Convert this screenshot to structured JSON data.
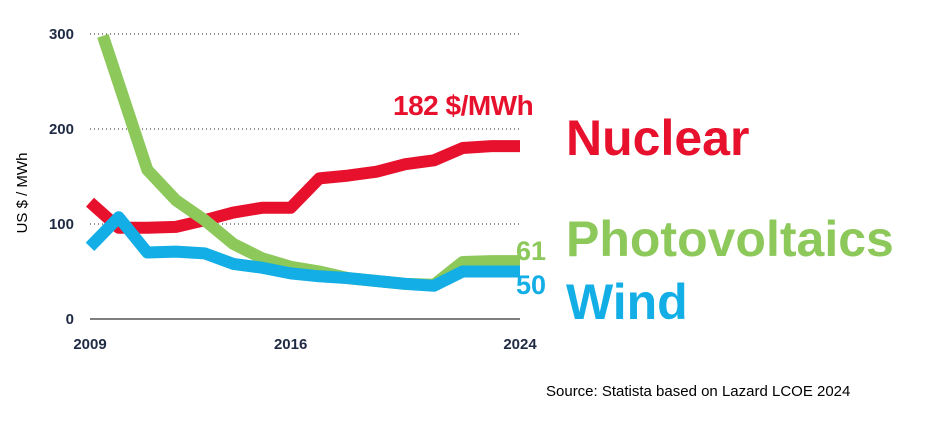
{
  "chart_data": {
    "type": "line",
    "ylabel": "US $ / MWh",
    "ylim": [
      0,
      300
    ],
    "yticks": [
      0,
      100,
      200,
      300
    ],
    "xlim": [
      2009,
      2024
    ],
    "xticks": [
      "2009",
      "2016",
      "2024"
    ],
    "grid": "horizontal dotted",
    "series": [
      {
        "name": "Nuclear",
        "color": "#e8112d",
        "end_label": "182 $/MWh",
        "x": [
          2009,
          2010,
          2011,
          2012,
          2013,
          2014,
          2015,
          2016,
          2017,
          2018,
          2019,
          2020,
          2021,
          2022,
          2023,
          2024
        ],
        "values": [
          123,
          96,
          96,
          97,
          104,
          112,
          117,
          117,
          148,
          151,
          155,
          163,
          167,
          180,
          182,
          182
        ]
      },
      {
        "name": "Photovoltaics",
        "color": "#8dc85a",
        "end_label": "61",
        "x": [
          2010,
          2011,
          2012,
          2013,
          2014,
          2015,
          2016,
          2017,
          2018,
          2019,
          2020,
          2021,
          2022,
          2023,
          2024
        ],
        "values": [
          248,
          157,
          125,
          104,
          79,
          64,
          55,
          50,
          43,
          40,
          37,
          36,
          60,
          61,
          61
        ]
      },
      {
        "name": "Wind",
        "color": "#12aee5",
        "end_label": "50",
        "x": [
          2009,
          2010,
          2011,
          2012,
          2013,
          2014,
          2015,
          2016,
          2017,
          2018,
          2019,
          2020,
          2021,
          2022,
          2023,
          2024
        ],
        "values": [
          76,
          107,
          70,
          71,
          69,
          58,
          54,
          48,
          45,
          43,
          40,
          37,
          35,
          50,
          50,
          50
        ]
      }
    ],
    "source": "Source: Statista based on Lazard LCOE 2024"
  }
}
